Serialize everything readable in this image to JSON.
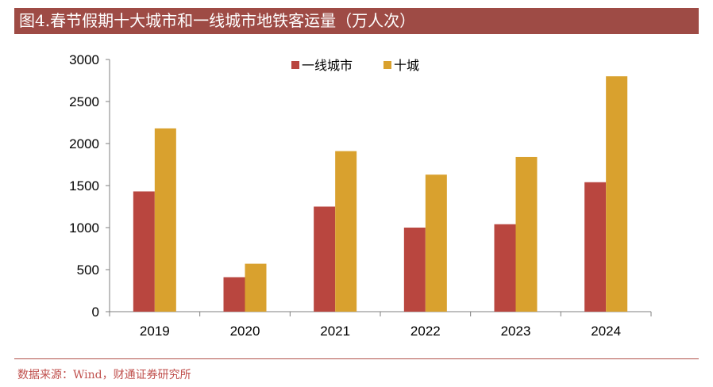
{
  "title": "图4.春节假期十大城市和一线城市地铁客运量（万人次）",
  "source": "数据来源：Wind，财通证券研究所",
  "colors": {
    "title_bg": "#9e4b45",
    "series_1": "#b9463f",
    "series_2": "#d9a12e"
  },
  "chart_data": {
    "type": "bar",
    "categories": [
      "2019",
      "2020",
      "2021",
      "2022",
      "2023",
      "2024"
    ],
    "series": [
      {
        "name": "一线城市",
        "values": [
          1430,
          410,
          1250,
          1000,
          1040,
          1540
        ]
      },
      {
        "name": "十城",
        "values": [
          2180,
          570,
          1910,
          1630,
          1840,
          2800
        ]
      }
    ],
    "ylim": [
      0,
      3000
    ],
    "yticks": [
      "0",
      "500",
      "1000",
      "1500",
      "2000",
      "2500",
      "3000"
    ],
    "grid": false,
    "legend_position": "top-center"
  }
}
